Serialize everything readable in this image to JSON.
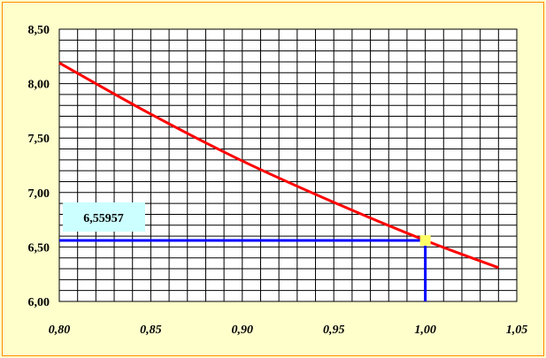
{
  "chart_data": {
    "type": "line",
    "xlim": [
      0.8,
      1.05
    ],
    "ylim": [
      6.0,
      8.5
    ],
    "x_ticks": [
      "0,80",
      "0,85",
      "0,90",
      "0,95",
      "1,00",
      "1,05"
    ],
    "y_ticks": [
      "6,00",
      "6,50",
      "7,00",
      "7,50",
      "8,00",
      "8,50"
    ],
    "grid": true,
    "series": [
      {
        "color": "#ff0000",
        "x": [
          0.8,
          0.85,
          0.9,
          0.95,
          1.0,
          1.04
        ],
        "y": [
          8.19,
          7.72,
          7.29,
          6.91,
          6.56,
          6.31
        ]
      }
    ],
    "marker": {
      "x": 1.0,
      "y": 6.55957,
      "color": "#ffff66"
    },
    "guides_color": "#0000ff",
    "callout": {
      "text": "6,55957",
      "background": "#ccffff"
    }
  }
}
